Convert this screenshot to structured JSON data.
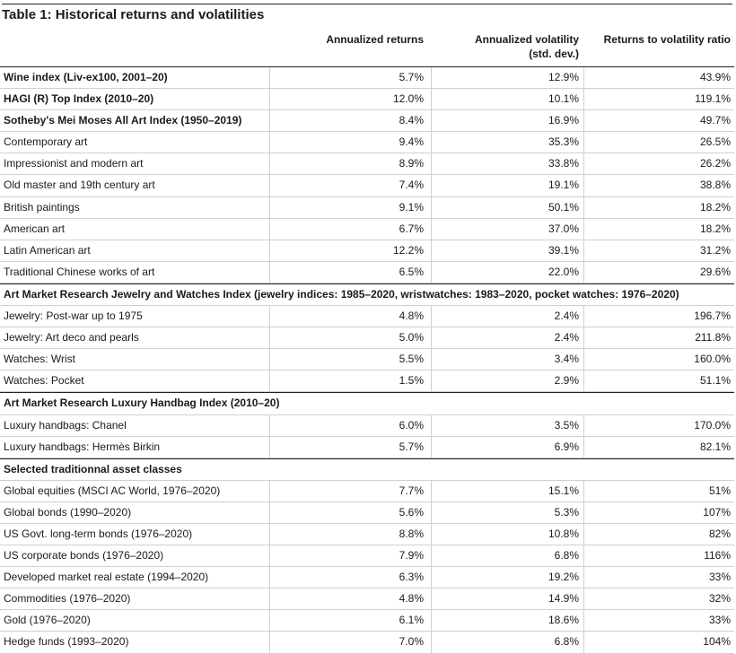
{
  "title": "Table 1: Historical returns and volatilities",
  "headers": {
    "col1": "Annualized returns",
    "col2_line1": "Annualized volatility",
    "col2_line2": "(std. dev.)",
    "col3": "Returns to volatility ratio"
  },
  "rows": [
    {
      "label": "Wine index (Liv-ex100, 2001–20)",
      "r": "5.7%",
      "v": "12.9%",
      "ratio": "43.9%",
      "bold": true
    },
    {
      "label": "HAGI (R) Top Index (2010–20)",
      "r": "12.0%",
      "v": "10.1%",
      "ratio": "119.1%",
      "bold": true
    },
    {
      "label": "Sotheby's Mei Moses All Art Index (1950–2019)",
      "r": "8.4%",
      "v": "16.9%",
      "ratio": "49.7%",
      "bold": true
    },
    {
      "label": "Contemporary art",
      "r": "9.4%",
      "v": "35.3%",
      "ratio": "26.5%"
    },
    {
      "label": "Impressionist and modern art",
      "r": "8.9%",
      "v": "33.8%",
      "ratio": "26.2%"
    },
    {
      "label": "Old master and 19th century art",
      "r": "7.4%",
      "v": "19.1%",
      "ratio": "38.8%"
    },
    {
      "label": "British paintings",
      "r": "9.1%",
      "v": "50.1%",
      "ratio": "18.2%"
    },
    {
      "label": "American art",
      "r": "6.7%",
      "v": "37.0%",
      "ratio": "18.2%"
    },
    {
      "label": "Latin American art",
      "r": "12.2%",
      "v": "39.1%",
      "ratio": "31.2%"
    },
    {
      "label": "Traditional Chinese works of art",
      "r": "6.5%",
      "v": "22.0%",
      "ratio": "29.6%"
    },
    {
      "label": "Art Market Research Jewelry and Watches Index (jewelry indices: 1985–2020, wristwatches: 1983–2020, pocket watches: 1976–2020)",
      "section": true
    },
    {
      "label": "Jewelry: Post-war up to 1975",
      "r": "4.8%",
      "v": "2.4%",
      "ratio": "196.7%"
    },
    {
      "label": "Jewelry: Art deco and pearls",
      "r": "5.0%",
      "v": "2.4%",
      "ratio": "211.8%"
    },
    {
      "label": "Watches: Wrist",
      "r": "5.5%",
      "v": "3.4%",
      "ratio": "160.0%"
    },
    {
      "label": "Watches: Pocket",
      "r": "1.5%",
      "v": "2.9%",
      "ratio": "51.1%"
    },
    {
      "label": "Art Market Research Luxury Handbag Index (2010–20)",
      "section": true
    },
    {
      "label": "Luxury handbags: Chanel",
      "r": "6.0%",
      "v": "3.5%",
      "ratio": "170.0%"
    },
    {
      "label": "Luxury handbags: Hermès Birkin",
      "r": "5.7%",
      "v": "6.9%",
      "ratio": "82.1%"
    },
    {
      "label": "Selected traditionnal asset classes",
      "section": true
    },
    {
      "label": "Global equities (MSCI AC World, 1976–2020)",
      "r": "7.7%",
      "v": "15.1%",
      "ratio": "51%"
    },
    {
      "label": "Global bonds (1990–2020)",
      "r": "5.6%",
      "v": "5.3%",
      "ratio": "107%"
    },
    {
      "label": "US Govt. long-term bonds (1976–2020)",
      "r": "8.8%",
      "v": "10.8%",
      "ratio": "82%"
    },
    {
      "label": "US corporate bonds (1976–2020)",
      "r": "7.9%",
      "v": "6.8%",
      "ratio": "116%"
    },
    {
      "label": "Developed market real estate (1994–2020)",
      "r": "6.3%",
      "v": "19.2%",
      "ratio": "33%"
    },
    {
      "label": "Commodities (1976–2020)",
      "r": "4.8%",
      "v": "14.9%",
      "ratio": "32%"
    },
    {
      "label": "Gold (1976–2020)",
      "r": "6.1%",
      "v": "18.6%",
      "ratio": "33%"
    },
    {
      "label": "Hedge funds (1993–2020)",
      "r": "7.0%",
      "v": "6.8%",
      "ratio": "104%"
    }
  ]
}
